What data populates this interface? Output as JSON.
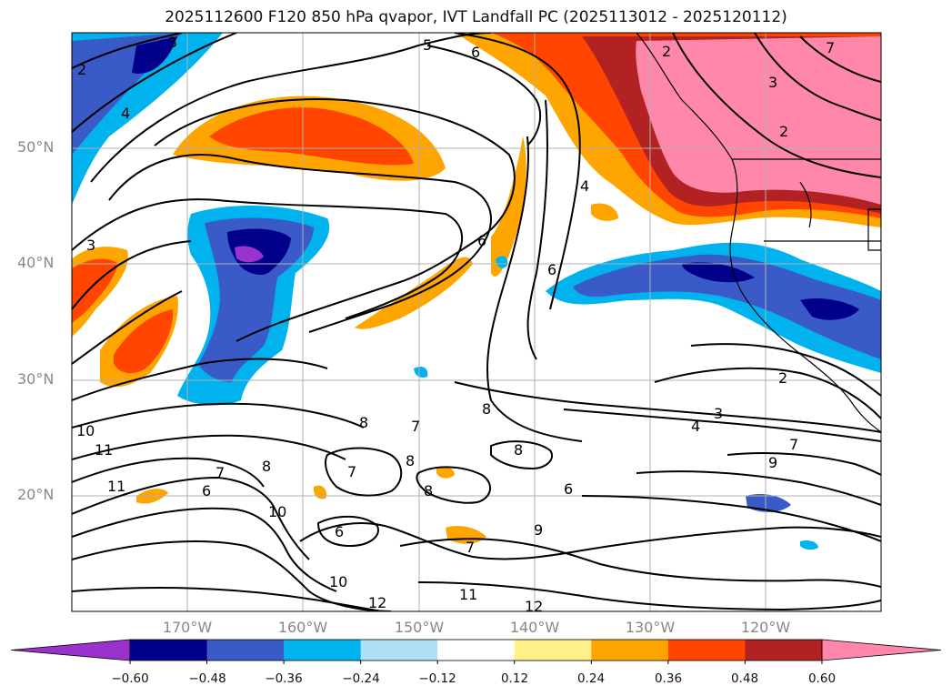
{
  "title": "2025112600 F120 850 hPa qvapor, IVT Landfall PC (2025113012 - 2025120112)",
  "map": {
    "lat_labels": [
      "50°N",
      "40°N",
      "30°N",
      "20°N"
    ],
    "lon_labels": [
      "170°W",
      "160°W",
      "150°W",
      "140°W",
      "130°W",
      "120°W"
    ],
    "contour_labels": [
      "2",
      "3",
      "4",
      "5",
      "6",
      "6",
      "7",
      "2",
      "3",
      "2",
      "4",
      "3",
      "6",
      "8",
      "8",
      "8",
      "6",
      "3",
      "4",
      "9",
      "7",
      "10",
      "11",
      "11",
      "7",
      "8",
      "10",
      "6",
      "6",
      "7",
      "8",
      "8",
      "9",
      "12",
      "11",
      "12",
      "10",
      "7",
      "2",
      "7"
    ]
  },
  "colorbar": {
    "ticks": [
      "−0.60",
      "−0.48",
      "−0.36",
      "−0.24",
      "−0.12",
      "0.12",
      "0.24",
      "0.36",
      "0.48",
      "0.60"
    ],
    "colors": {
      "low_extend": "#9a32cd",
      "c1": "#00008b",
      "c2": "#3a5bc7",
      "c3": "#00b2ee",
      "c4": "#b0e0f7",
      "c5": "#ffffff",
      "c6": "#fff08a",
      "c7": "#ffa500",
      "c8": "#ff4500",
      "c9": "#b22222",
      "high_extend": "#ff88aa"
    }
  }
}
